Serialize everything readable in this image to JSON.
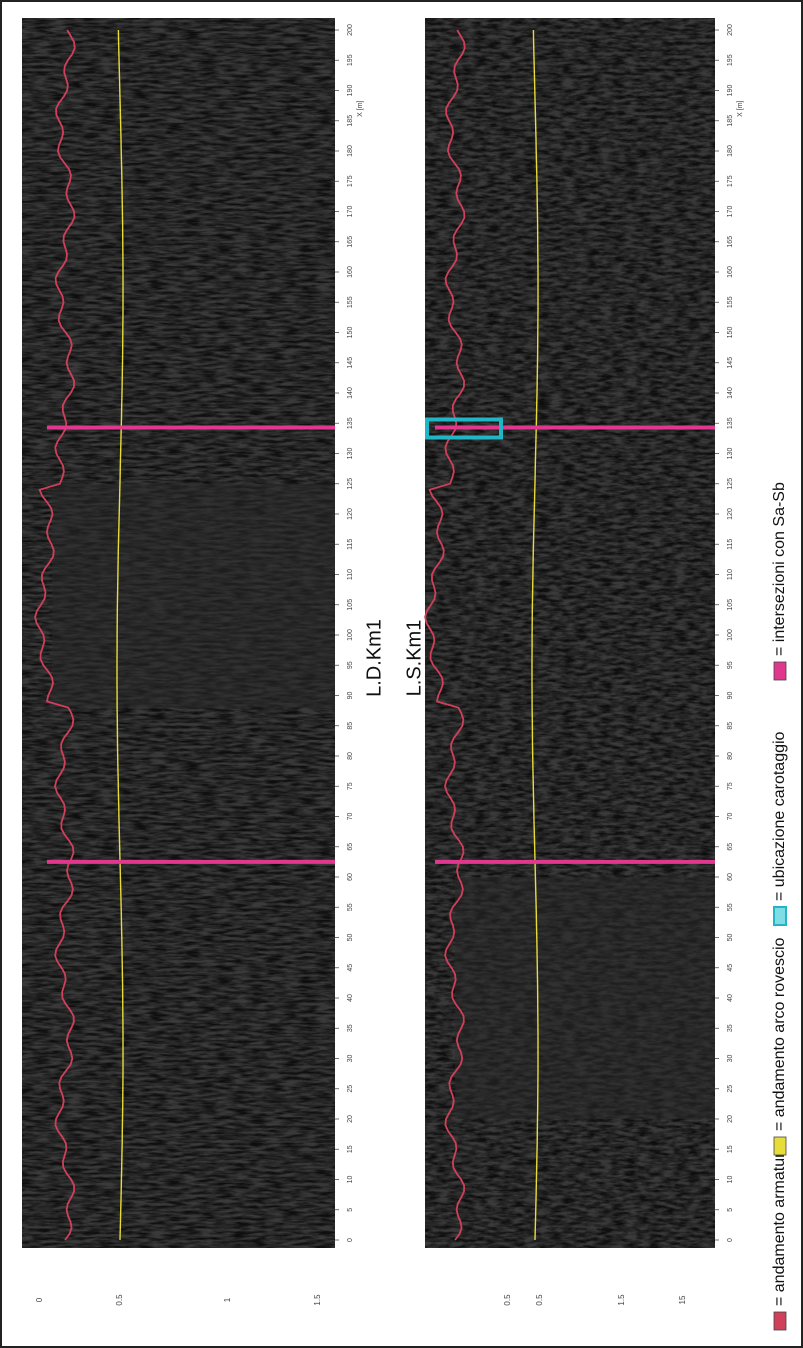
{
  "panels": [
    {
      "title": "L.D.Km1",
      "distance_ticks": [
        0,
        5,
        10,
        15,
        20,
        25,
        30,
        35,
        40,
        45,
        50,
        55,
        60,
        65,
        70,
        75,
        80,
        85,
        90,
        95,
        100,
        105,
        110,
        115,
        120,
        125,
        130,
        135,
        140,
        145,
        150,
        155,
        160,
        165,
        170,
        175,
        180,
        185,
        190,
        195,
        200
      ],
      "distance_unit": "X [m]",
      "depth_ticks": [
        "0",
        "0.5",
        "1",
        "1.5"
      ]
    },
    {
      "title": "L.S.Km1",
      "distance_ticks": [
        0,
        5,
        10,
        15,
        20,
        25,
        30,
        35,
        40,
        45,
        50,
        55,
        60,
        65,
        70,
        75,
        80,
        85,
        90,
        95,
        100,
        105,
        110,
        115,
        120,
        125,
        130,
        135,
        140,
        145,
        150,
        155,
        160,
        165,
        170,
        175,
        180,
        185,
        190,
        195,
        200
      ],
      "distance_unit": "X [m]",
      "depth_ticks": [
        "0.5",
        "0.5",
        "1.5",
        "15"
      ]
    }
  ],
  "legend": [
    {
      "label": "= andamento armatura"
    },
    {
      "label": "= andamento arco rovescio"
    },
    {
      "label": "= ubicazione carotaggio"
    },
    {
      "label": "= intersezioni con Sa-Sb"
    }
  ]
}
